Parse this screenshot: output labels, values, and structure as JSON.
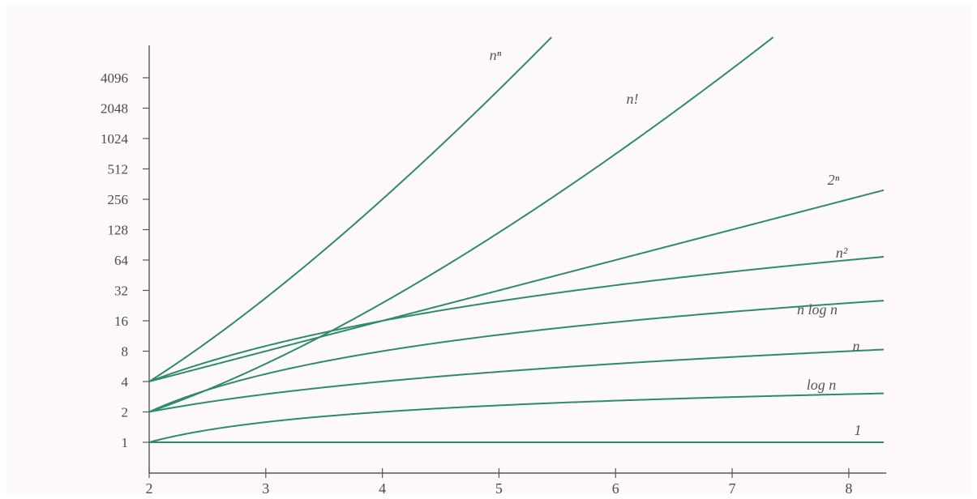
{
  "chart_data": {
    "type": "line",
    "title": "",
    "xlabel": "",
    "ylabel": "",
    "x_ticks": [
      "2",
      "3",
      "4",
      "5",
      "6",
      "7",
      "8"
    ],
    "y_ticks": [
      "1",
      "2",
      "4",
      "8",
      "16",
      "32",
      "64",
      "128",
      "256",
      "512",
      "1024",
      "2048",
      "4096"
    ],
    "xlim": [
      2,
      8.3
    ],
    "ylim": [
      0.7,
      12000
    ],
    "yscale": "log2",
    "grid": false,
    "line_color": "#2e8b6a",
    "axis_color": "#555555",
    "series": [
      {
        "name": "1",
        "fn": "1"
      },
      {
        "name": "log n",
        "fn": "log"
      },
      {
        "name": "n",
        "fn": "n"
      },
      {
        "name": "n log n",
        "fn": "nlogn"
      },
      {
        "name": "n²",
        "fn": "n2"
      },
      {
        "name": "2ⁿ",
        "fn": "2n"
      },
      {
        "name": "n!",
        "fn": "fact"
      },
      {
        "name": "nⁿ",
        "fn": "nn"
      }
    ]
  }
}
